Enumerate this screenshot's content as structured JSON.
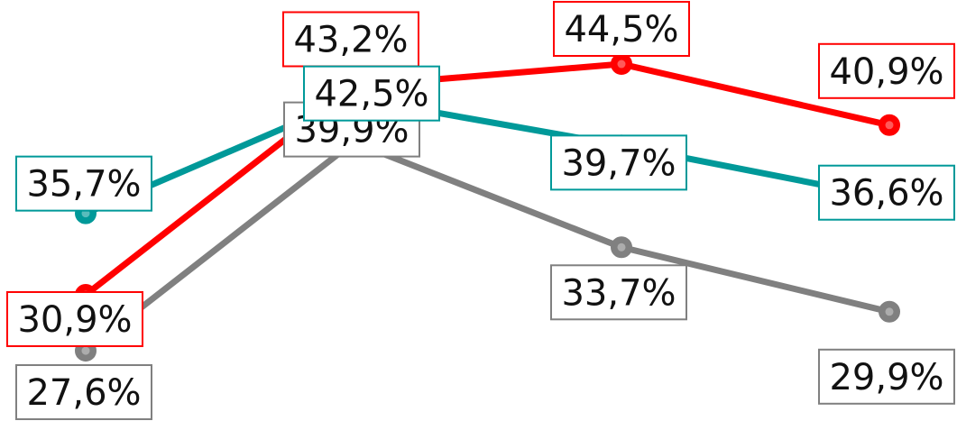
{
  "chart_data": {
    "type": "line",
    "title": "",
    "xlabel": "",
    "ylabel": "",
    "categories": [
      "",
      "",
      "",
      ""
    ],
    "ylim": [
      25,
      47
    ],
    "grid": false,
    "series": [
      {
        "color": "#ff0000",
        "values": [
          30.9,
          43.2,
          44.5,
          40.9
        ],
        "labels": [
          "30,9%",
          "43,2%",
          "44,5%",
          "40,9%"
        ]
      },
      {
        "color": "#009999",
        "values": [
          35.7,
          42.5,
          39.7,
          36.6
        ],
        "labels": [
          "35,7%",
          "42,5%",
          "39,7%",
          "36,6%"
        ]
      },
      {
        "color": "#808080",
        "values": [
          27.6,
          39.9,
          33.7,
          29.9
        ],
        "labels": [
          "27,6%",
          "39,9%",
          "33,7%",
          "29,9%"
        ]
      }
    ]
  }
}
